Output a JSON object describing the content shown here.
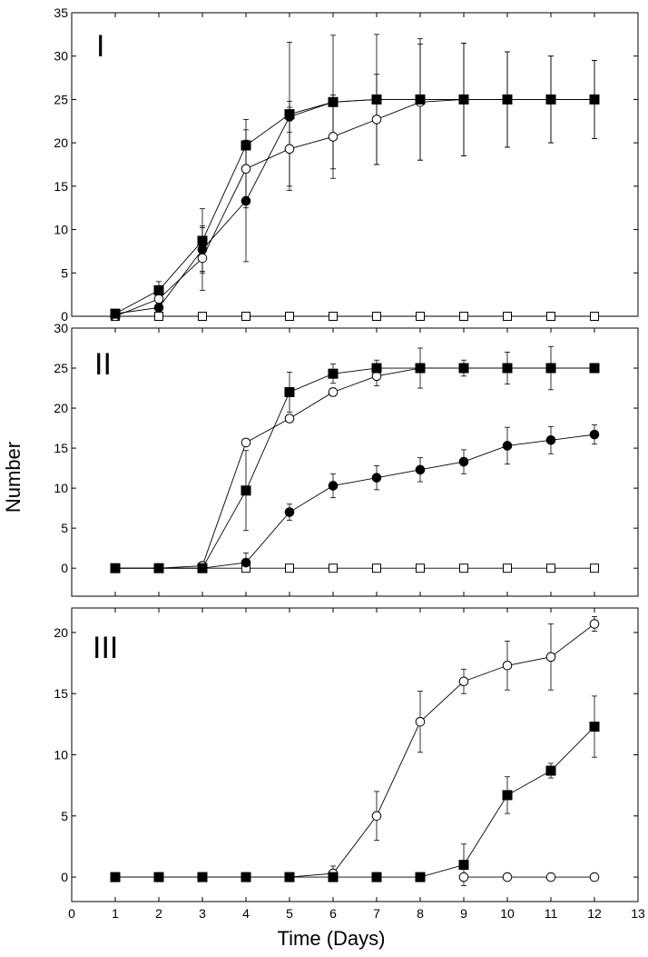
{
  "figure": {
    "ylabel": "Number",
    "xlabel": "Time (Days)",
    "x_ticks": [
      "0",
      "1",
      "2",
      "3",
      "4",
      "5",
      "6",
      "7",
      "8",
      "9",
      "10",
      "11",
      "12",
      "13"
    ]
  },
  "chart_data": [
    {
      "type": "line",
      "panel_label": "I",
      "ylim": [
        0,
        35
      ],
      "xlim": [
        0,
        13
      ],
      "y_ticks": [
        "0",
        "5",
        "10",
        "15",
        "20",
        "25",
        "30",
        "35"
      ],
      "x": [
        1,
        2,
        3,
        4,
        5,
        6,
        7,
        8,
        9,
        10,
        11,
        12
      ],
      "series": [
        {
          "marker": "square-filled",
          "values": [
            0.3,
            3.0,
            8.7,
            19.7,
            23.3,
            24.7,
            25,
            25,
            25,
            25,
            25,
            25
          ],
          "errors": [
            0.3,
            1.0,
            3.7,
            3.0,
            8.3,
            7.7,
            7.5,
            7.0,
            6.5,
            5.5,
            5.0,
            4.5
          ]
        },
        {
          "marker": "circle-open",
          "values": [
            0,
            2.0,
            6.7,
            17.0,
            19.3,
            20.7,
            22.7,
            24.7,
            25,
            25,
            25,
            25
          ],
          "errors": [
            0,
            0.8,
            3.7,
            4.5,
            4.8,
            4.8,
            5.2,
            6.7,
            6.5,
            5.5,
            5.0,
            4.5
          ]
        },
        {
          "marker": "circle-filled",
          "values": [
            0.3,
            1.0,
            7.7,
            13.3,
            23.0,
            24.7,
            25,
            25,
            25,
            25,
            25,
            25
          ],
          "errors": [
            0.3,
            0.5,
            2.5,
            7.0,
            1.8,
            0.5,
            0,
            0,
            0,
            0,
            0,
            0
          ]
        },
        {
          "marker": "square-open",
          "values": [
            0,
            0,
            0,
            0,
            0,
            0,
            0,
            0,
            0,
            0,
            0,
            0
          ],
          "errors": [
            0,
            0,
            0,
            0,
            0,
            0,
            0,
            0,
            0,
            0,
            0,
            0
          ]
        }
      ]
    },
    {
      "type": "line",
      "panel_label": "II",
      "ylim": [
        -3.5,
        30
      ],
      "xlim": [
        0,
        13
      ],
      "y_ticks": [
        "0",
        "5",
        "10",
        "15",
        "20",
        "25",
        "30"
      ],
      "x": [
        1,
        2,
        3,
        4,
        5,
        6,
        7,
        8,
        9,
        10,
        11,
        12
      ],
      "series": [
        {
          "marker": "square-filled",
          "values": [
            0,
            0,
            0,
            9.7,
            22.0,
            24.3,
            25,
            25,
            25,
            25,
            25,
            25
          ],
          "errors": [
            0,
            0,
            0,
            5.0,
            2.5,
            1.2,
            1.0,
            2.5,
            1.0,
            2.0,
            2.7,
            0.5
          ]
        },
        {
          "marker": "circle-open",
          "values": [
            0,
            0,
            0.3,
            15.7,
            18.7,
            22.0,
            24.0,
            25,
            25,
            25,
            25,
            25
          ],
          "errors": [
            0,
            0,
            0,
            0,
            0,
            0.5,
            1.2,
            0,
            0,
            0,
            0,
            0
          ]
        },
        {
          "marker": "circle-filled",
          "values": [
            0,
            0,
            0,
            0.7,
            7.0,
            10.3,
            11.3,
            12.3,
            13.3,
            15.3,
            16.0,
            16.7
          ],
          "errors": [
            0,
            0,
            0,
            1.2,
            1.0,
            1.5,
            1.5,
            1.5,
            1.5,
            2.3,
            1.7,
            1.2
          ]
        },
        {
          "marker": "square-open",
          "values": [
            0,
            0,
            0,
            0,
            0,
            0,
            0,
            0,
            0,
            0,
            0,
            0
          ],
          "errors": [
            0,
            0,
            0,
            0,
            0,
            0,
            0,
            0,
            0,
            0,
            0,
            0
          ]
        }
      ]
    },
    {
      "type": "line",
      "panel_label": "III",
      "ylim": [
        -2,
        22
      ],
      "xlim": [
        0,
        13
      ],
      "y_ticks": [
        "0",
        "5",
        "10",
        "15",
        "20"
      ],
      "x": [
        1,
        2,
        3,
        4,
        5,
        6,
        7,
        8,
        9,
        10,
        11,
        12
      ],
      "series": [
        {
          "marker": "circle-open",
          "values": [
            0,
            0,
            0,
            0,
            0,
            0.3,
            5.0,
            12.7,
            16.0,
            17.3,
            18.0,
            20.7
          ],
          "errors": [
            0,
            0,
            0,
            0,
            0,
            0.6,
            2.0,
            2.5,
            1.0,
            2.0,
            2.7,
            0.6
          ]
        },
        {
          "marker": "square-filled",
          "values": [
            0,
            0,
            0,
            0,
            0,
            0,
            0,
            0,
            1.0,
            6.7,
            8.7,
            12.3
          ],
          "errors": [
            0,
            0,
            0,
            0,
            0,
            0,
            0,
            0,
            1.7,
            1.5,
            0.6,
            2.5
          ]
        },
        {
          "marker": "circle-open",
          "values": [
            null,
            null,
            null,
            null,
            null,
            null,
            null,
            null,
            0,
            0,
            0,
            0
          ],
          "errors": [
            0,
            0,
            0,
            0,
            0,
            0,
            0,
            0,
            0,
            0,
            0,
            0
          ]
        }
      ]
    }
  ]
}
